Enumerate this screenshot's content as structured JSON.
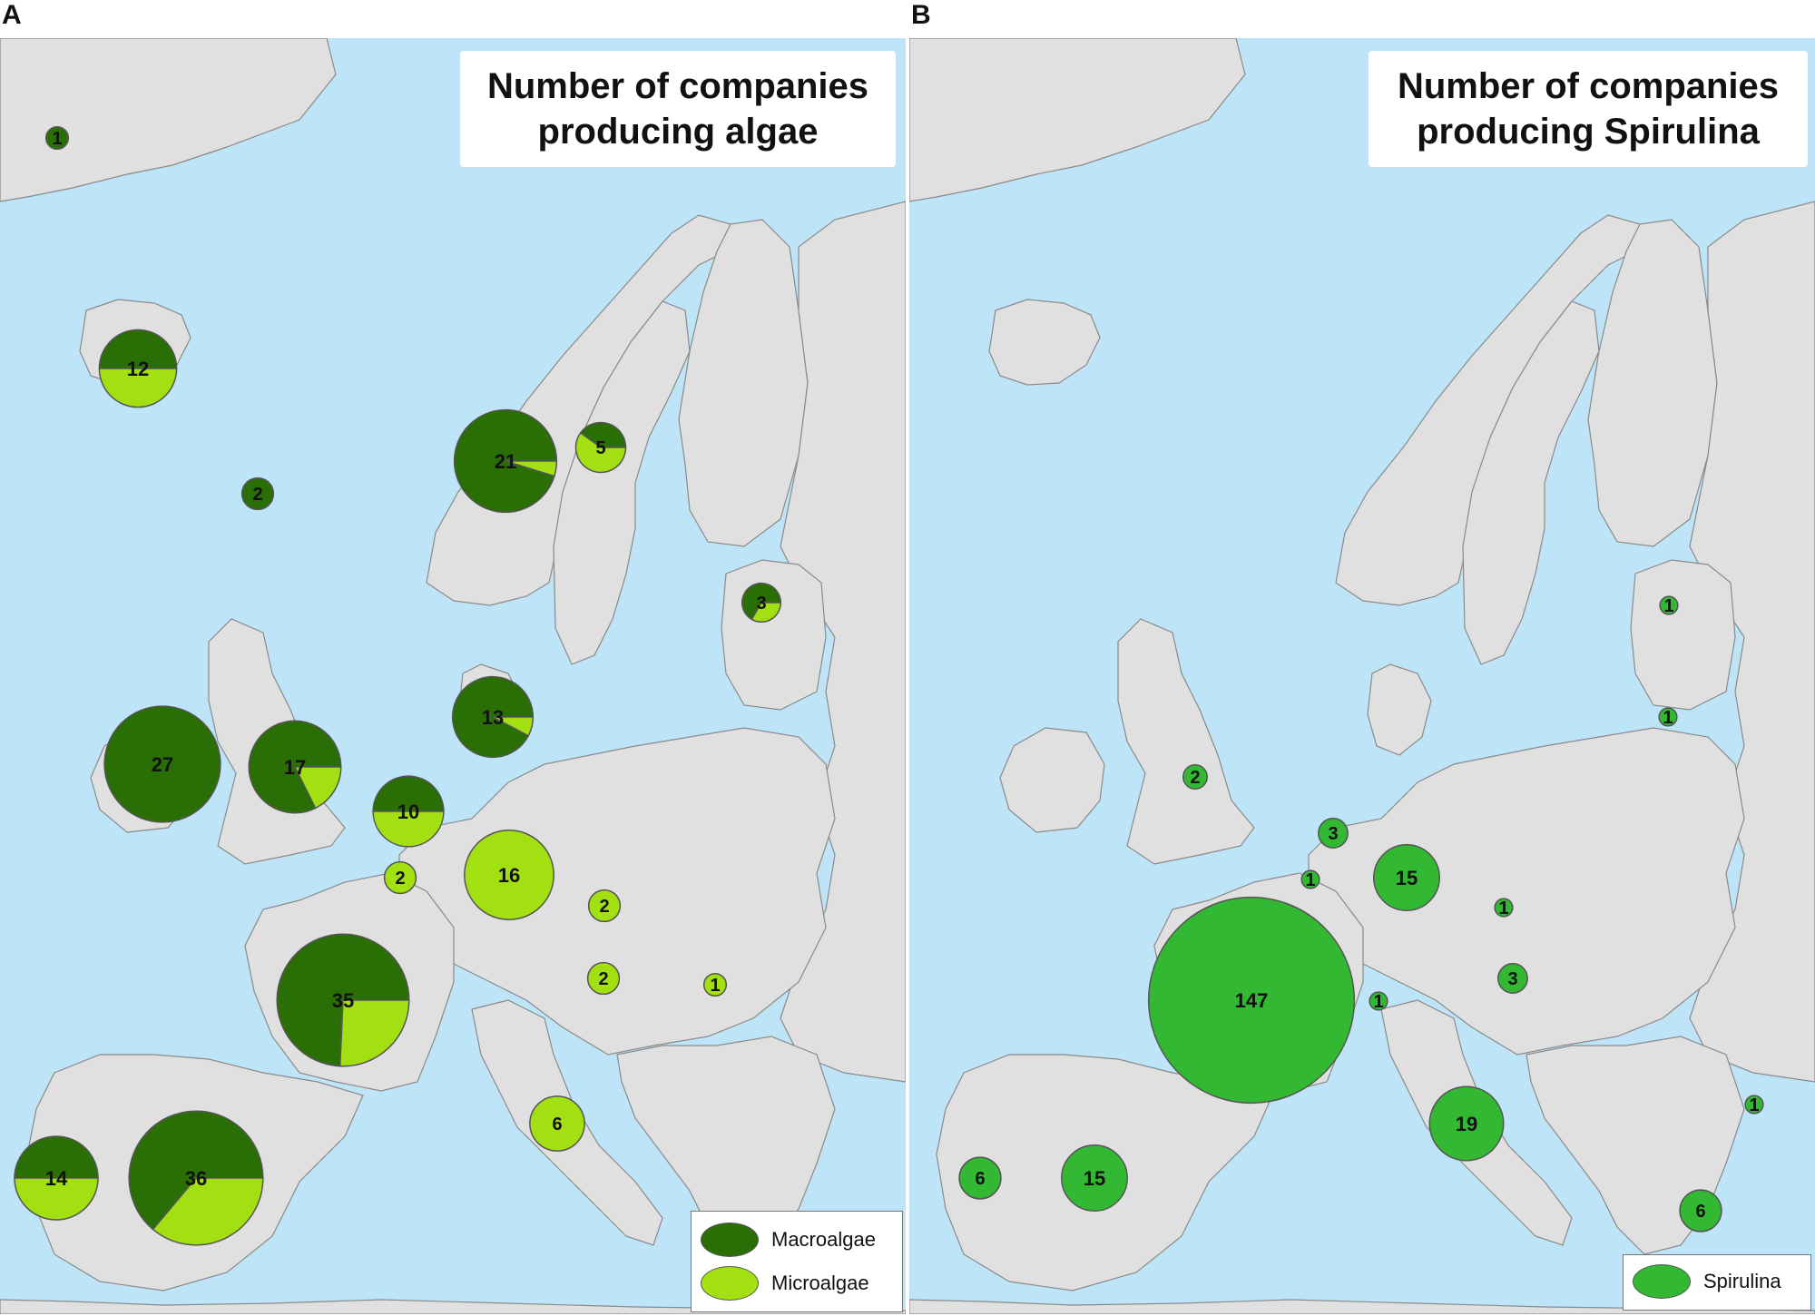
{
  "panels": [
    {
      "letter": "A",
      "title": [
        "Number of companies",
        "producing algae"
      ],
      "legend": [
        {
          "label": "Macroalgae",
          "color": "#2a6e06"
        },
        {
          "label": "Microalgae",
          "color": "#a2e012"
        }
      ],
      "markers": [
        {
          "region": "Greenland",
          "total": 1,
          "macro": 1,
          "micro": 0
        },
        {
          "region": "Iceland",
          "total": 12,
          "macro": 6,
          "micro": 6
        },
        {
          "region": "Faroe Islands",
          "total": 2,
          "macro": 2,
          "micro": 0
        },
        {
          "region": "Norway",
          "total": 21,
          "macro": 20,
          "micro": 1
        },
        {
          "region": "Sweden",
          "total": 5,
          "macro": 2,
          "micro": 3
        },
        {
          "region": "Estonia",
          "total": 3,
          "macro": 2,
          "micro": 1
        },
        {
          "region": "Denmark",
          "total": 13,
          "macro": 12,
          "micro": 1
        },
        {
          "region": "Ireland",
          "total": 27,
          "macro": 27,
          "micro": 0
        },
        {
          "region": "United Kingdom",
          "total": 17,
          "macro": 14,
          "micro": 3
        },
        {
          "region": "Netherlands",
          "total": 10,
          "macro": 5,
          "micro": 5
        },
        {
          "region": "Belgium",
          "total": 2,
          "macro": 0,
          "micro": 2
        },
        {
          "region": "Germany",
          "total": 16,
          "macro": 0,
          "micro": 16
        },
        {
          "region": "Czech Republic",
          "total": 2,
          "macro": 0,
          "micro": 2
        },
        {
          "region": "Austria",
          "total": 2,
          "macro": 0,
          "micro": 2
        },
        {
          "region": "Hungary",
          "total": 1,
          "macro": 0,
          "micro": 1
        },
        {
          "region": "France",
          "total": 35,
          "macro": 26,
          "micro": 9
        },
        {
          "region": "Italy",
          "total": 6,
          "macro": 0,
          "micro": 6
        },
        {
          "region": "Portugal",
          "total": 14,
          "macro": 7,
          "micro": 7
        },
        {
          "region": "Spain",
          "total": 36,
          "macro": 23,
          "micro": 13
        }
      ]
    },
    {
      "letter": "B",
      "title": [
        "Number of companies",
        "producing Spirulina"
      ],
      "legend": [
        {
          "label": "Spirulina",
          "color": "#33b833"
        }
      ],
      "markers": [
        {
          "region": "Estonia",
          "total": 1
        },
        {
          "region": "Lithuania",
          "total": 1
        },
        {
          "region": "United Kingdom",
          "total": 2
        },
        {
          "region": "Netherlands",
          "total": 3
        },
        {
          "region": "Belgium",
          "total": 1
        },
        {
          "region": "Germany",
          "total": 15
        },
        {
          "region": "Czech Republic",
          "total": 1
        },
        {
          "region": "Hungary",
          "total": 3
        },
        {
          "region": "Switzerland",
          "total": 1
        },
        {
          "region": "France",
          "total": 147
        },
        {
          "region": "Italy",
          "total": 19
        },
        {
          "region": "Bulgaria",
          "total": 1
        },
        {
          "region": "Portugal",
          "total": 6
        },
        {
          "region": "Spain",
          "total": 15
        },
        {
          "region": "Greece",
          "total": 6
        }
      ]
    }
  ]
}
